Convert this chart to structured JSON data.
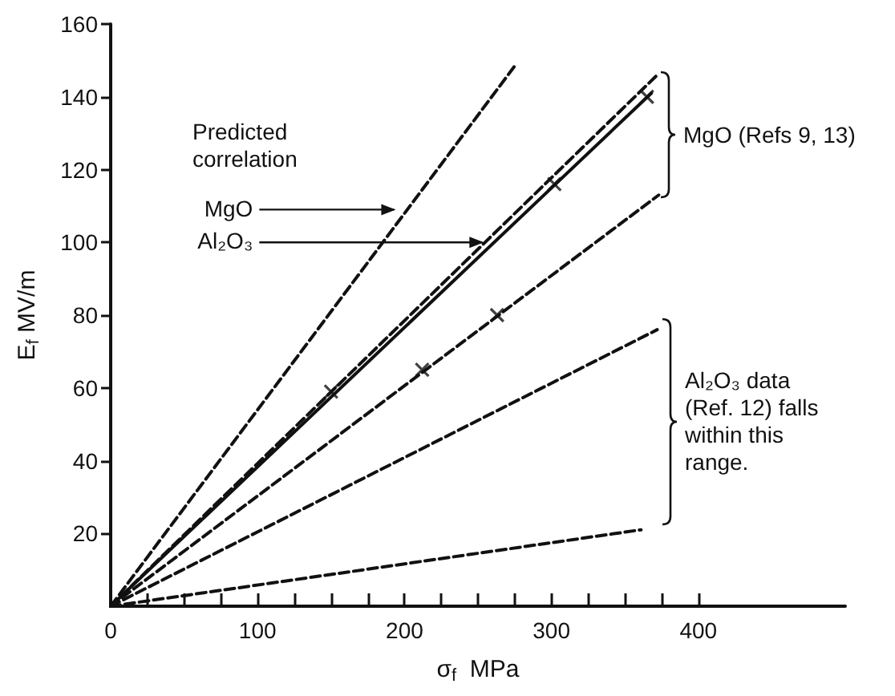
{
  "chart_data": {
    "type": "line",
    "xlabel": "σ$_{f}$  MPa",
    "ylabel": "E$_{f}$ MV/m",
    "xlim": [
      0,
      500
    ],
    "ylim": [
      0,
      160
    ],
    "xticks": [
      0,
      {
        "value": 25,
        "label": null
      },
      {
        "value": 50,
        "label": null
      },
      {
        "value": 75,
        "label": null
      },
      100,
      {
        "value": 125,
        "label": null
      },
      {
        "value": 150,
        "label": null
      },
      {
        "value": 175,
        "label": null
      },
      200,
      {
        "value": 225,
        "label": null
      },
      {
        "value": 250,
        "label": null
      },
      {
        "value": 275,
        "label": null
      },
      300,
      {
        "value": 325,
        "label": null
      },
      {
        "value": 350,
        "label": null
      },
      {
        "value": 375,
        "label": null
      },
      400
    ],
    "yticks": [
      20,
      40,
      60,
      80,
      100,
      120,
      140,
      160
    ],
    "grid": false,
    "series": [
      {
        "color": "#111111",
        "line_style": "dashed",
        "marker": "none",
        "x": [
          0,
          276
        ],
        "values": [
          0,
          149
        ]
      },
      {
        "color": "#111111",
        "line_style": "dashed",
        "marker": "none",
        "x": [
          0,
          372
        ],
        "values": [
          0,
          146
        ]
      },
      {
        "color": "#111111",
        "line_style": "solid",
        "marker": "none",
        "x": [
          0,
          368
        ],
        "values": [
          0,
          141
        ]
      },
      {
        "color": "#111111",
        "line_style": "dashed",
        "marker": "none",
        "x": [
          0,
          373
        ],
        "values": [
          0,
          113
        ]
      },
      {
        "color": "#111111",
        "line_style": "dashed",
        "marker": "none",
        "x": [
          0,
          372
        ],
        "values": [
          0,
          76
        ]
      },
      {
        "color": "#111111",
        "line_style": "dashed",
        "marker": "none",
        "x": [
          0,
          361
        ],
        "values": [
          0,
          21
        ]
      },
      {
        "type": "scatter",
        "color": "#111111",
        "marker": "cross",
        "x": [
          150,
          302,
          365
        ],
        "values": [
          59,
          116,
          140
        ]
      },
      {
        "type": "scatter",
        "color": "#111111",
        "marker": "cross",
        "x": [
          212,
          263
        ],
        "values": [
          65,
          80
        ]
      }
    ],
    "annotations": [
      "Predicted correlation",
      {
        "text": "MgO",
        "x": 194,
        "y": 109
      },
      {
        "text": "Al₂O₃",
        "x": 254,
        "y": 100
      },
      "MgO (Refs 9, 13)",
      "Al₂O₃ data (Ref. 12) falls within this range."
    ]
  }
}
